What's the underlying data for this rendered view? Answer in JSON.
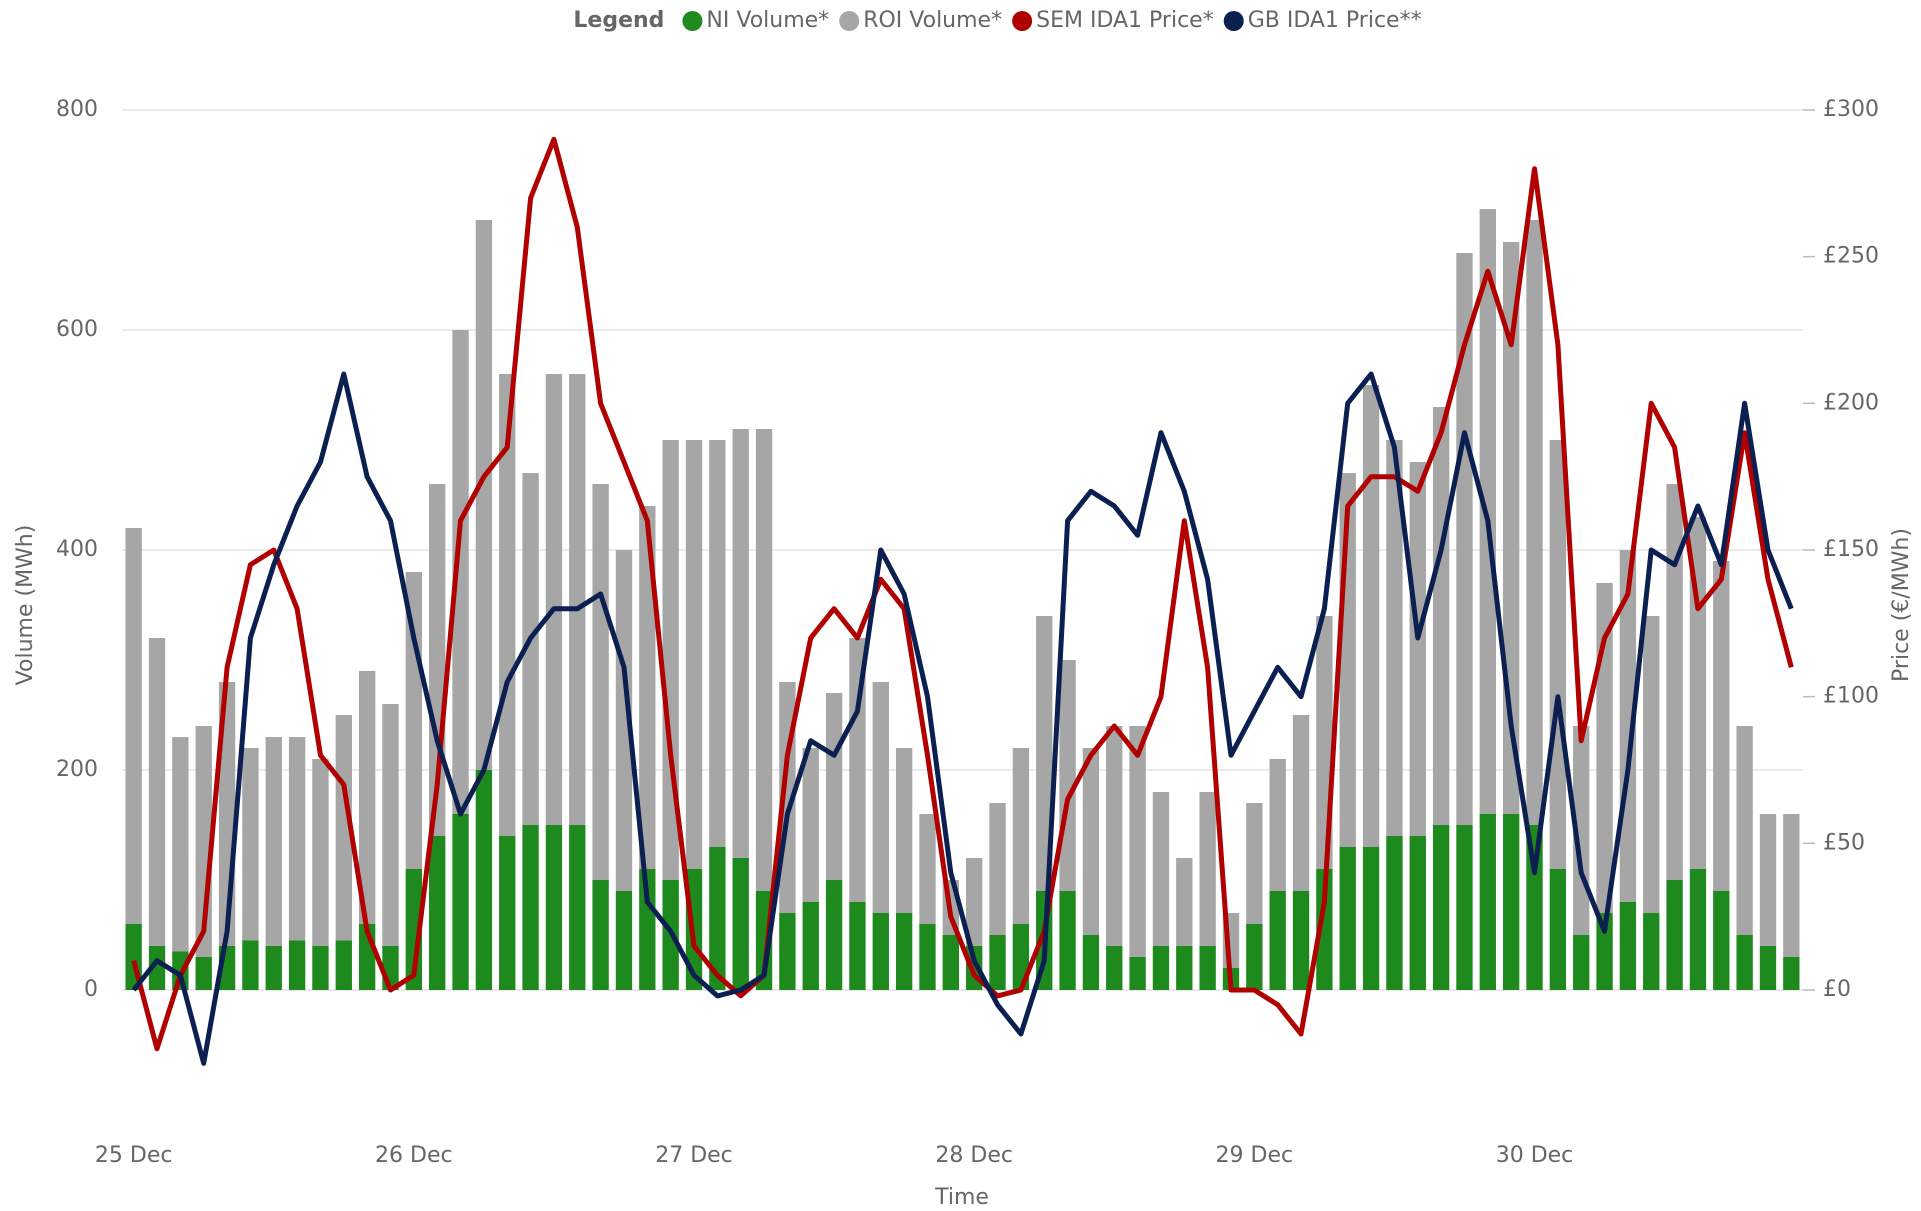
{
  "chart_data": {
    "type": "combo",
    "stacked": true,
    "legend_title": "Legend",
    "legend_position": "top",
    "x_label": "Time",
    "y_label": "Volume (MWh)",
    "y2_label": "Price (€/MWh)",
    "x": [
      0,
      2,
      4,
      6,
      8,
      10,
      12,
      14,
      16,
      18,
      20,
      22,
      24,
      26,
      28,
      30,
      32,
      34,
      36,
      38,
      40,
      42,
      44,
      46,
      48,
      50,
      52,
      54,
      56,
      58,
      60,
      62,
      64,
      66,
      68,
      70,
      72,
      74,
      76,
      78,
      80,
      82,
      84,
      86,
      88,
      90,
      92,
      94,
      96,
      98,
      100,
      102,
      104,
      106,
      108,
      110,
      112,
      114,
      116,
      118,
      120,
      122,
      124,
      126,
      128,
      130,
      132,
      134,
      136,
      138,
      140,
      142
    ],
    "xlim": [
      -1,
      143
    ],
    "xticks": [
      {
        "value": 0,
        "label": "25 Dec"
      },
      {
        "value": 24,
        "label": "26 Dec"
      },
      {
        "value": 48,
        "label": "27 Dec"
      },
      {
        "value": 72,
        "label": "28 Dec"
      },
      {
        "value": 96,
        "label": "29 Dec"
      },
      {
        "value": 120,
        "label": "30 Dec"
      }
    ],
    "ylim": [
      -100,
      800
    ],
    "yticks": [
      0,
      200,
      400,
      600,
      800
    ],
    "y2lim": [
      -37.5,
      300
    ],
    "y2ticks": [
      {
        "value": 0,
        "label": "£0"
      },
      {
        "value": 50,
        "label": "£50"
      },
      {
        "value": 100,
        "label": "£100"
      },
      {
        "value": 150,
        "label": "£150"
      },
      {
        "value": 200,
        "label": "£200"
      },
      {
        "value": 250,
        "label": "£250"
      },
      {
        "value": 300,
        "label": "£300"
      }
    ],
    "grid": true,
    "series": [
      {
        "name": "NI Volume*",
        "type": "bar",
        "color": "#1e8a1e",
        "values": [
          60,
          40,
          35,
          30,
          40,
          45,
          40,
          45,
          40,
          45,
          60,
          40,
          110,
          140,
          160,
          200,
          140,
          150,
          150,
          150,
          100,
          90,
          110,
          100,
          110,
          130,
          120,
          90,
          70,
          80,
          100,
          80,
          70,
          70,
          60,
          50,
          40,
          50,
          60,
          90,
          90,
          50,
          40,
          30,
          40,
          40,
          40,
          20,
          60,
          90,
          90,
          110,
          130,
          130,
          140,
          140,
          150,
          150,
          160,
          160,
          150,
          110,
          50,
          70,
          80,
          70,
          100,
          110,
          90,
          50,
          40,
          30
        ]
      },
      {
        "name": "ROI Volume*",
        "type": "bar",
        "color": "#a6a6a6",
        "values": [
          360,
          280,
          195,
          210,
          240,
          175,
          190,
          185,
          170,
          205,
          230,
          220,
          270,
          320,
          440,
          500,
          420,
          320,
          410,
          410,
          360,
          310,
          330,
          400,
          390,
          370,
          390,
          420,
          210,
          140,
          170,
          240,
          210,
          150,
          100,
          50,
          80,
          120,
          160,
          250,
          210,
          170,
          200,
          210,
          140,
          80,
          140,
          50,
          110,
          120,
          160,
          230,
          340,
          420,
          360,
          340,
          380,
          520,
          550,
          520,
          550,
          390,
          190,
          300,
          320,
          270,
          360,
          320,
          300,
          190,
          120,
          130
        ]
      },
      {
        "name": "SEM IDA1 Price*",
        "type": "line",
        "axis": "y2",
        "color": "#b00000",
        "values": [
          10,
          -20,
          5,
          20,
          110,
          145,
          150,
          130,
          80,
          70,
          20,
          0,
          5,
          70,
          160,
          175,
          185,
          270,
          290,
          260,
          200,
          180,
          160,
          80,
          15,
          5,
          -2,
          5,
          80,
          120,
          130,
          120,
          140,
          130,
          80,
          25,
          5,
          -2,
          0,
          20,
          65,
          80,
          90,
          80,
          100,
          160,
          110,
          0,
          0,
          -5,
          -15,
          30,
          165,
          175,
          175,
          170,
          190,
          220,
          245,
          220,
          280,
          220,
          85,
          120,
          135,
          200,
          185,
          130,
          140,
          190,
          140,
          110
        ]
      },
      {
        "name": "GB IDA1 Price**",
        "type": "line",
        "axis": "y2",
        "color": "#0b2050",
        "values": [
          0,
          10,
          5,
          -25,
          20,
          120,
          145,
          165,
          180,
          210,
          175,
          160,
          120,
          85,
          60,
          75,
          105,
          120,
          130,
          130,
          135,
          110,
          30,
          20,
          5,
          -2,
          0,
          5,
          60,
          85,
          80,
          95,
          150,
          135,
          100,
          40,
          10,
          -5,
          -15,
          10,
          160,
          170,
          165,
          155,
          190,
          170,
          140,
          80,
          95,
          110,
          100,
          130,
          200,
          210,
          185,
          120,
          150,
          190,
          160,
          90,
          40,
          100,
          40,
          20,
          75,
          150,
          145,
          165,
          145,
          200,
          150,
          130
        ]
      }
    ]
  }
}
